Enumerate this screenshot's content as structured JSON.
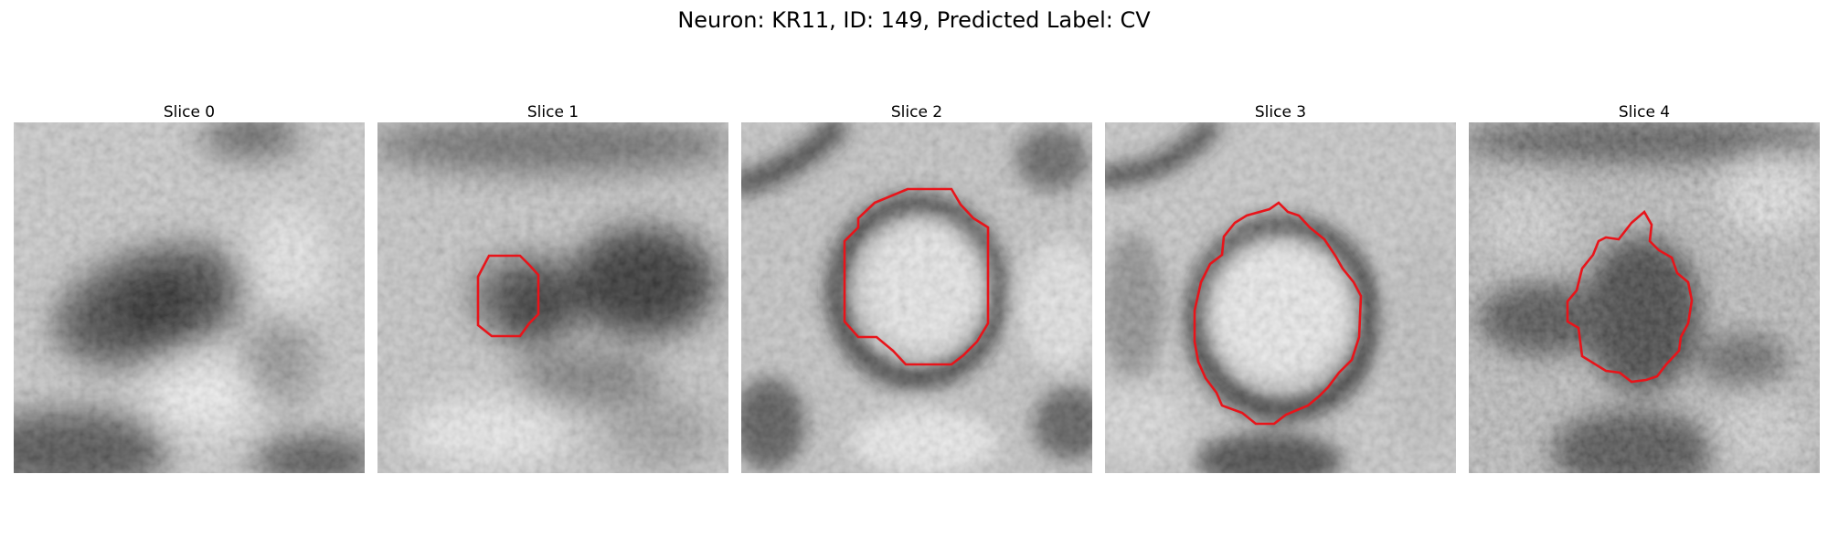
{
  "figure": {
    "title": "Neuron: KR11, ID: 149, Predicted Label: CV"
  },
  "colors": {
    "contour": "#e8141a",
    "background": "#ffffff"
  },
  "panels": [
    {
      "title": "Slice 0"
    },
    {
      "title": "Slice 1"
    },
    {
      "title": "Slice 2"
    },
    {
      "title": "Slice 3"
    },
    {
      "title": "Slice 4"
    }
  ]
}
